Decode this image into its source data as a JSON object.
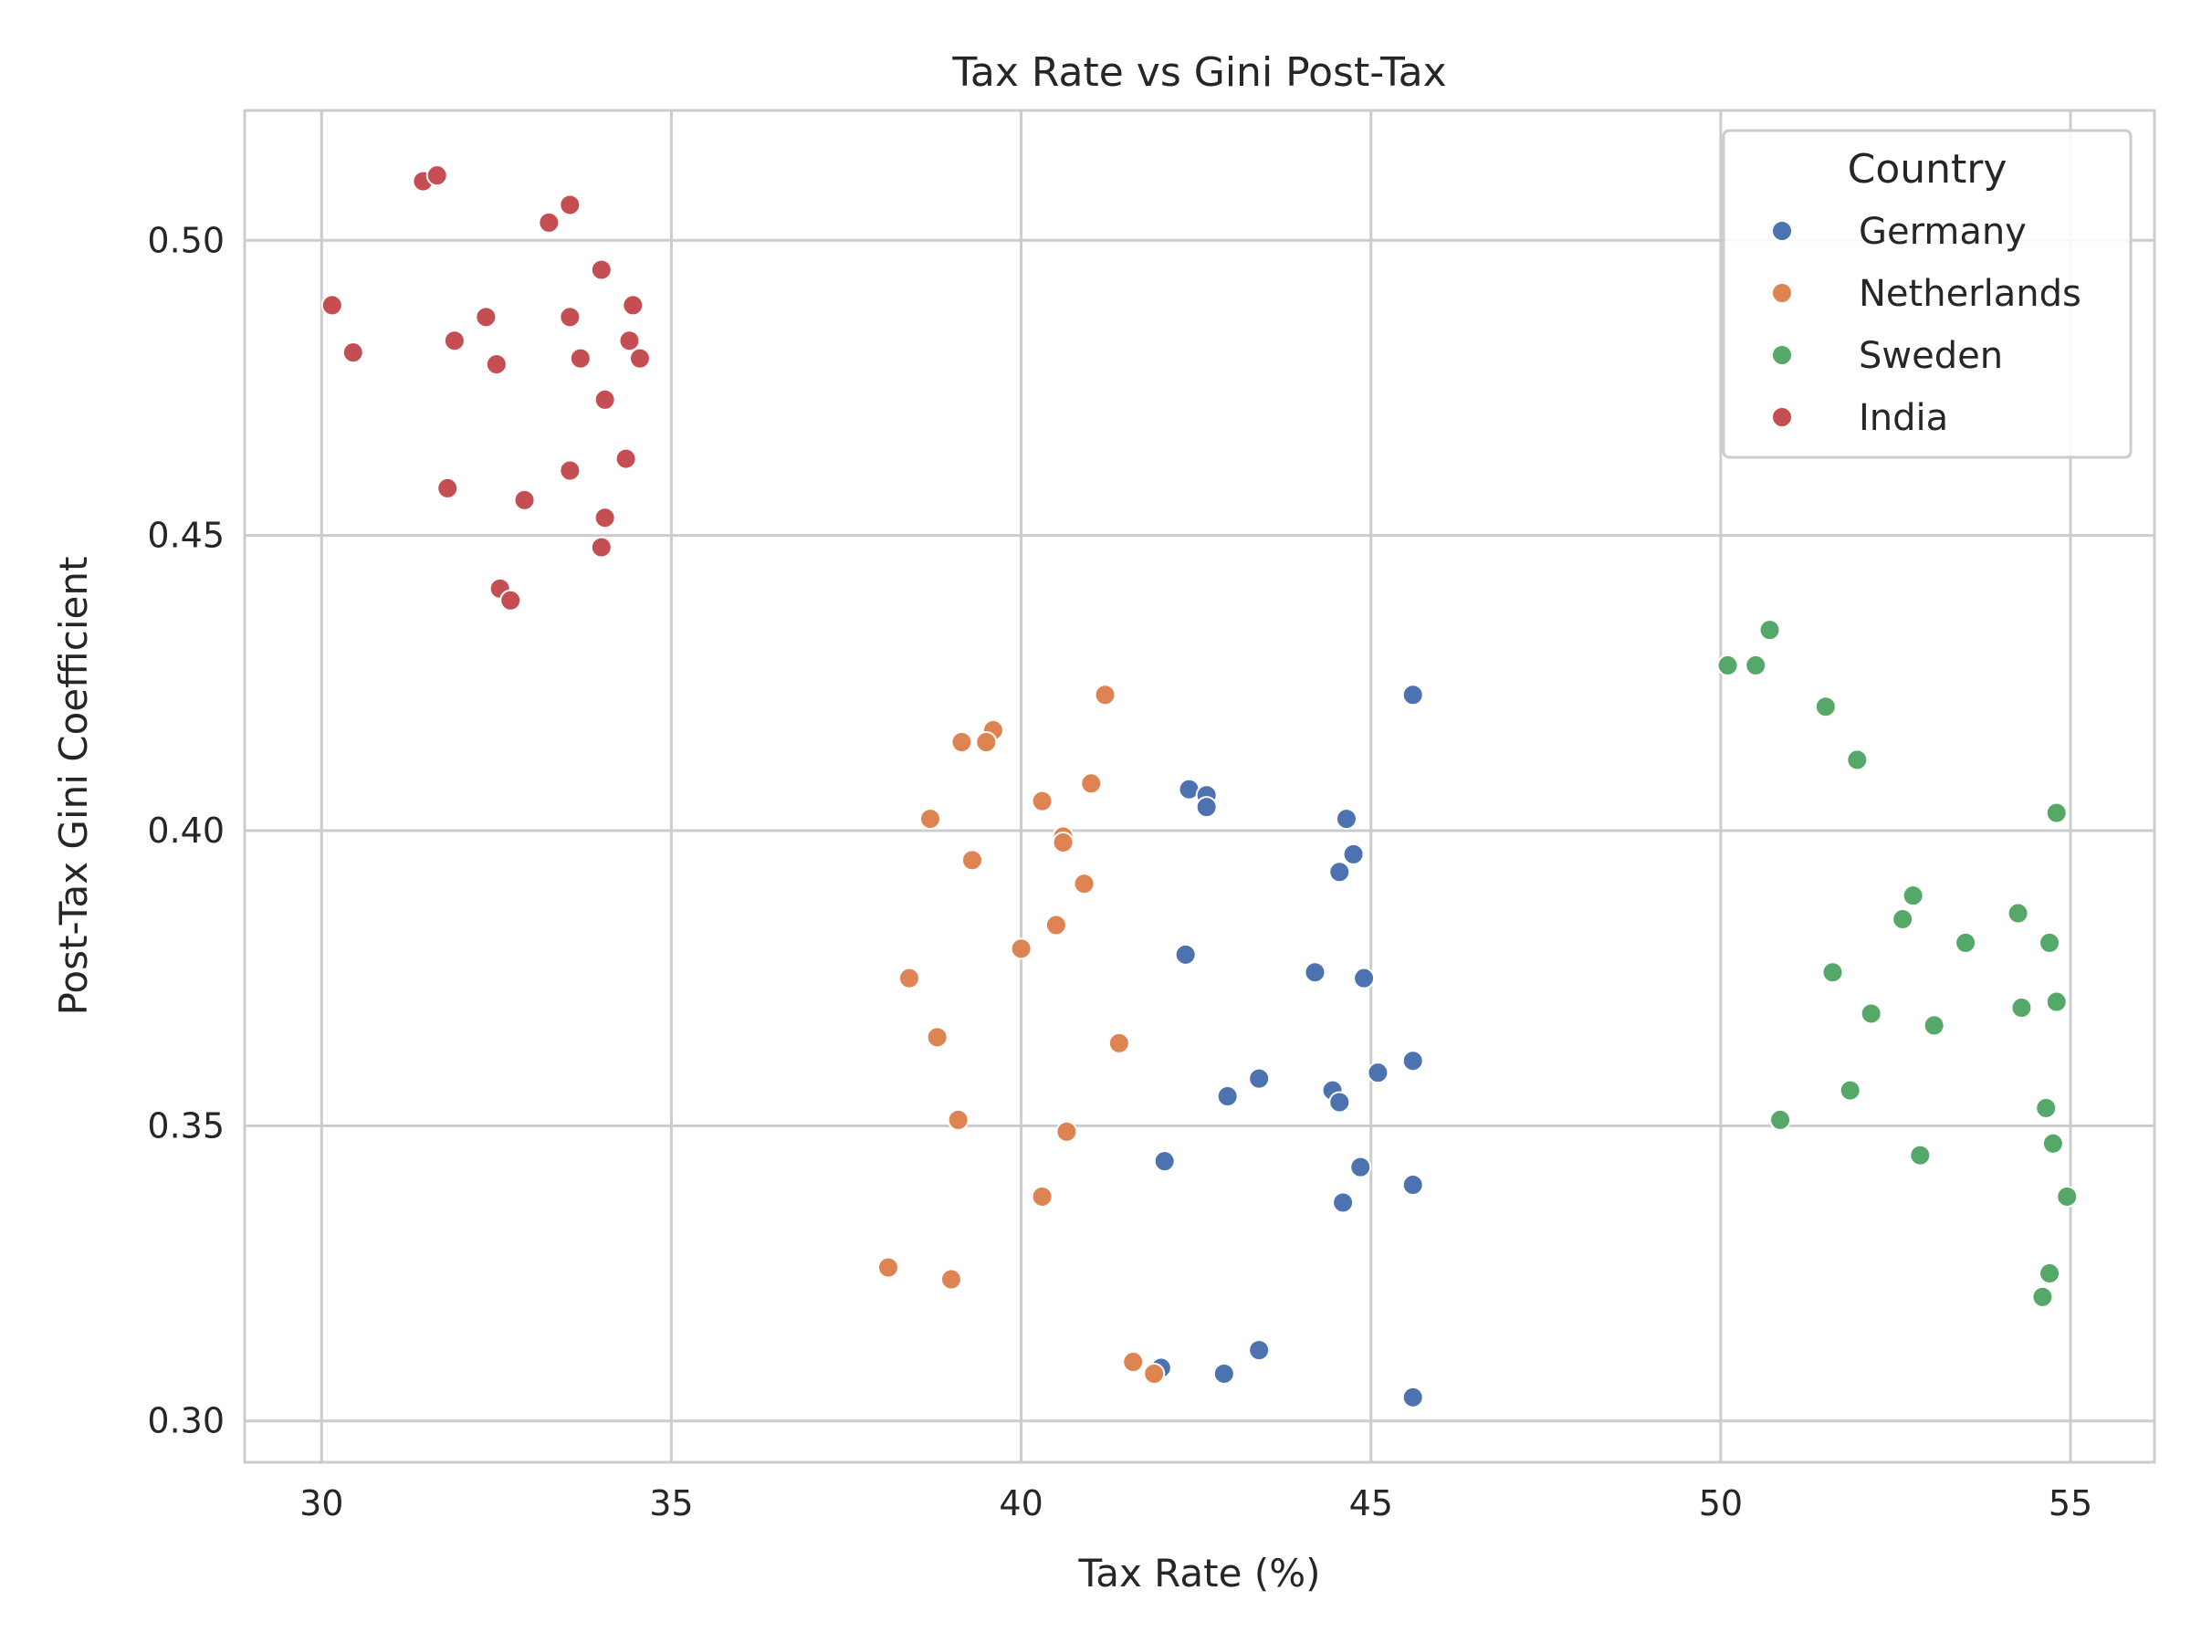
{
  "chart_data": {
    "type": "scatter",
    "title": "Tax Rate vs Gini Post-Tax",
    "xlabel": "Tax Rate (%)",
    "ylabel": "Post-Tax Gini Coefficient",
    "xlim": [
      28.9,
      56.2
    ],
    "ylim": [
      0.293,
      0.522
    ],
    "xticks": [
      30,
      35,
      40,
      45,
      50,
      55
    ],
    "yticks": [
      0.3,
      0.35,
      0.4,
      0.45,
      0.5
    ],
    "xtick_labels": [
      "30",
      "35",
      "40",
      "45",
      "50",
      "55"
    ],
    "ytick_labels": [
      "0.30",
      "0.35",
      "0.40",
      "0.45",
      "0.50"
    ],
    "grid": true,
    "legend": {
      "title": "Country",
      "placement": "top-right"
    },
    "series": [
      {
        "name": "Germany",
        "color": "#4c72b0",
        "points": [
          [
            45.6,
            0.423
          ],
          [
            42.4,
            0.407
          ],
          [
            42.65,
            0.406
          ],
          [
            42.65,
            0.404
          ],
          [
            44.65,
            0.402
          ],
          [
            44.75,
            0.396
          ],
          [
            44.55,
            0.393
          ],
          [
            42.35,
            0.379
          ],
          [
            44.2,
            0.376
          ],
          [
            44.9,
            0.375
          ],
          [
            45.6,
            0.361
          ],
          [
            45.1,
            0.359
          ],
          [
            43.4,
            0.358
          ],
          [
            44.45,
            0.356
          ],
          [
            42.95,
            0.355
          ],
          [
            44.55,
            0.354
          ],
          [
            42.05,
            0.344
          ],
          [
            44.85,
            0.343
          ],
          [
            45.6,
            0.34
          ],
          [
            44.6,
            0.337
          ],
          [
            43.4,
            0.312
          ],
          [
            42.0,
            0.309
          ],
          [
            42.9,
            0.308
          ],
          [
            45.6,
            0.304
          ]
        ]
      },
      {
        "name": "Netherlands",
        "color": "#dd8452",
        "points": [
          [
            41.2,
            0.423
          ],
          [
            39.6,
            0.417
          ],
          [
            39.15,
            0.415
          ],
          [
            39.5,
            0.415
          ],
          [
            41.0,
            0.408
          ],
          [
            40.3,
            0.405
          ],
          [
            38.7,
            0.402
          ],
          [
            40.6,
            0.399
          ],
          [
            40.6,
            0.398
          ],
          [
            39.3,
            0.395
          ],
          [
            40.9,
            0.391
          ],
          [
            40.5,
            0.384
          ],
          [
            40.0,
            0.38
          ],
          [
            38.4,
            0.375
          ],
          [
            38.8,
            0.365
          ],
          [
            41.4,
            0.364
          ],
          [
            39.1,
            0.351
          ],
          [
            40.65,
            0.349
          ],
          [
            40.3,
            0.338
          ],
          [
            38.1,
            0.326
          ],
          [
            39.0,
            0.324
          ],
          [
            41.6,
            0.31
          ],
          [
            41.9,
            0.308
          ]
        ]
      },
      {
        "name": "Sweden",
        "color": "#55a868",
        "points": [
          [
            50.7,
            0.434
          ],
          [
            50.1,
            0.428
          ],
          [
            50.5,
            0.428
          ],
          [
            51.5,
            0.421
          ],
          [
            51.95,
            0.412
          ],
          [
            54.8,
            0.403
          ],
          [
            52.75,
            0.389
          ],
          [
            54.25,
            0.386
          ],
          [
            52.6,
            0.385
          ],
          [
            53.5,
            0.381
          ],
          [
            54.7,
            0.381
          ],
          [
            51.6,
            0.376
          ],
          [
            54.8,
            0.371
          ],
          [
            54.3,
            0.37
          ],
          [
            52.15,
            0.369
          ],
          [
            53.05,
            0.367
          ],
          [
            51.85,
            0.356
          ],
          [
            54.65,
            0.353
          ],
          [
            50.85,
            0.351
          ],
          [
            54.75,
            0.347
          ],
          [
            52.85,
            0.345
          ],
          [
            54.95,
            0.338
          ],
          [
            54.7,
            0.325
          ],
          [
            54.6,
            0.321
          ]
        ]
      },
      {
        "name": "India",
        "color": "#c44e52",
        "points": [
          [
            31.45,
            0.51
          ],
          [
            31.65,
            0.511
          ],
          [
            33.55,
            0.506
          ],
          [
            33.25,
            0.503
          ],
          [
            34.0,
            0.495
          ],
          [
            30.15,
            0.489
          ],
          [
            34.45,
            0.489
          ],
          [
            32.35,
            0.487
          ],
          [
            33.55,
            0.487
          ],
          [
            31.9,
            0.483
          ],
          [
            34.4,
            0.483
          ],
          [
            30.45,
            0.481
          ],
          [
            33.7,
            0.48
          ],
          [
            34.55,
            0.48
          ],
          [
            32.5,
            0.479
          ],
          [
            34.05,
            0.473
          ],
          [
            34.35,
            0.463
          ],
          [
            33.55,
            0.461
          ],
          [
            31.8,
            0.458
          ],
          [
            32.9,
            0.456
          ],
          [
            34.05,
            0.453
          ],
          [
            34.0,
            0.448
          ],
          [
            32.55,
            0.441
          ],
          [
            32.7,
            0.439
          ]
        ]
      }
    ]
  }
}
